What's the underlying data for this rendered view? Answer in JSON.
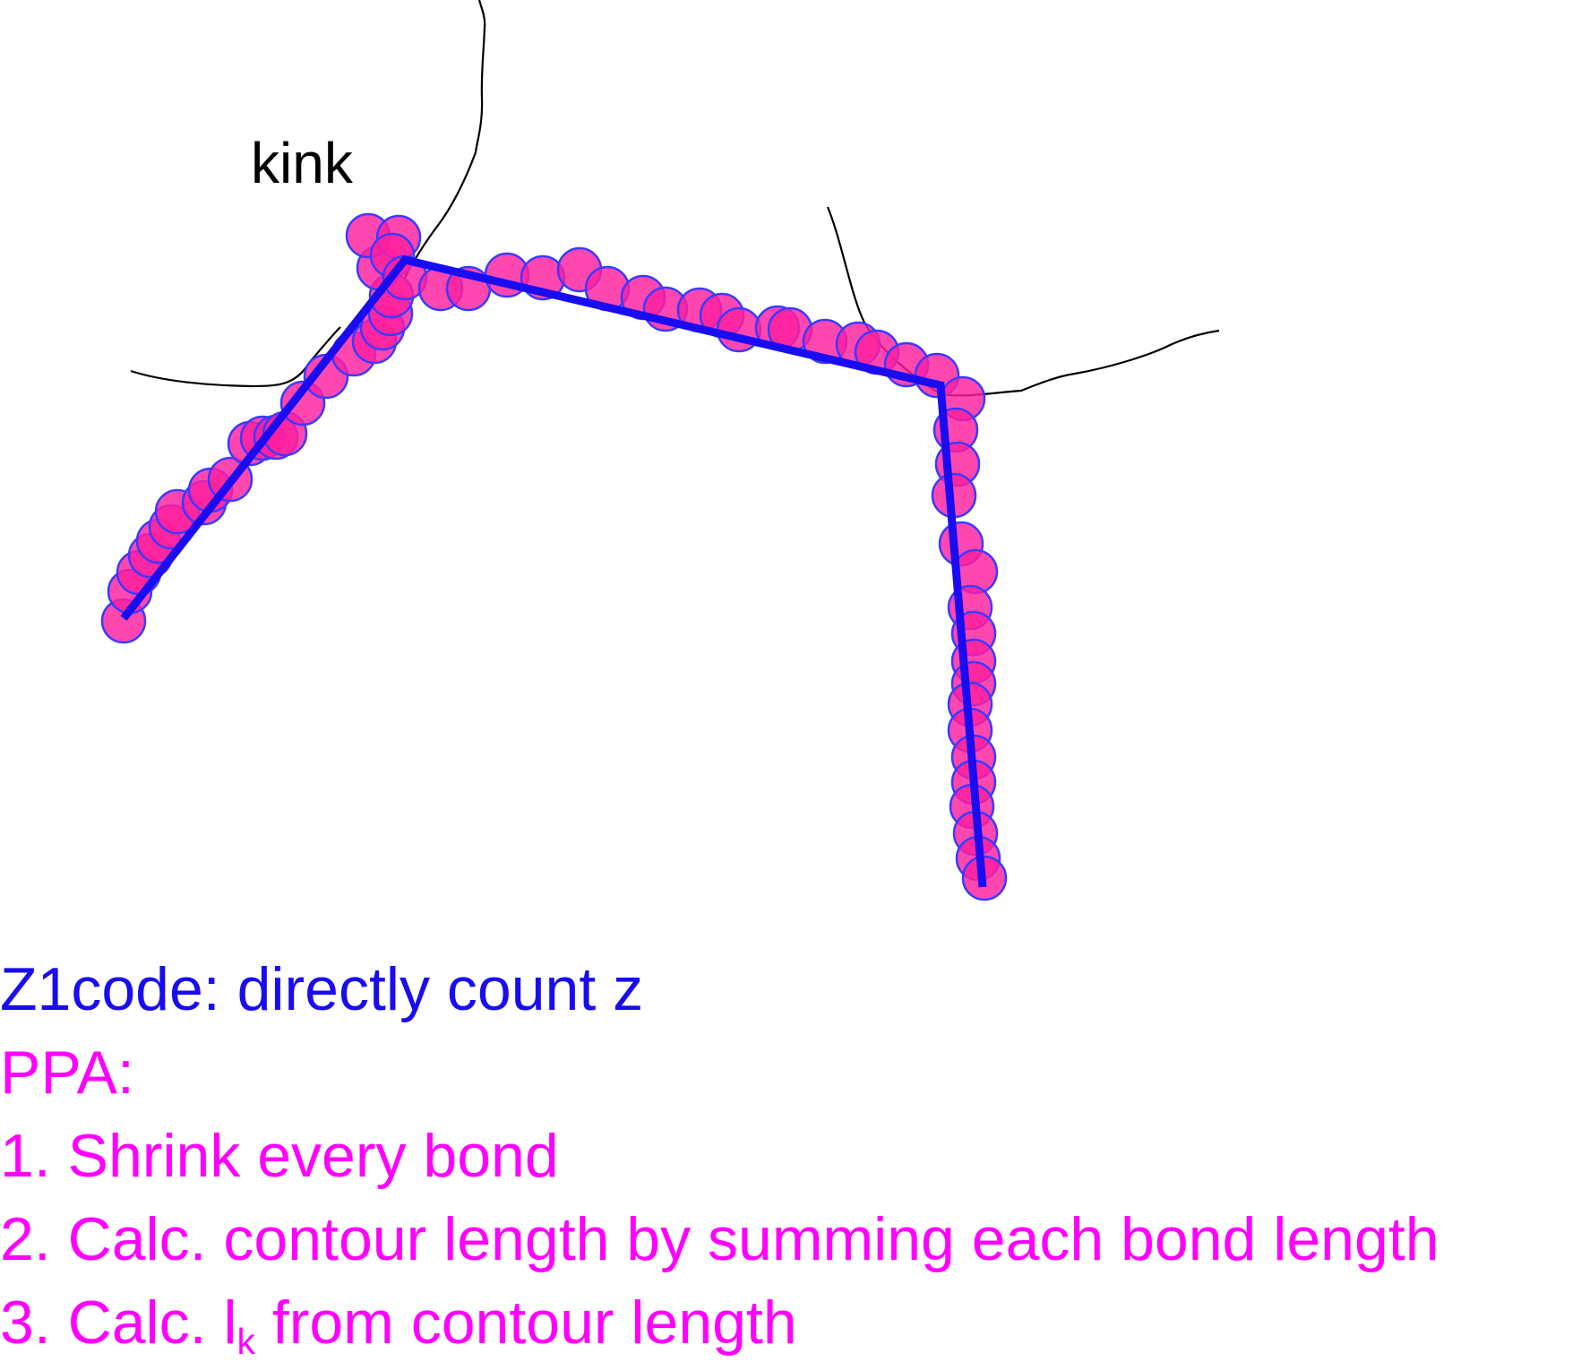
{
  "diagram": {
    "kink_label": "kink",
    "colors": {
      "bead_fill": "#ff1f9f",
      "bead_stroke": "#3a3aff",
      "primitive_path": "#1a0cf0",
      "thin_chains": "#000000",
      "z1_text": "#1a0cf0",
      "ppa_text": "#ff00ff"
    }
  },
  "caption": {
    "z1code": "Z1code: directly count z",
    "ppa_title": "PPA:",
    "step1": "1. Shrink every bond",
    "step2": "2. Calc. contour length by summing each bond length",
    "step3_prefix": "3. Calc. l",
    "step3_subscript": "k",
    "step3_suffix": " from contour length"
  }
}
